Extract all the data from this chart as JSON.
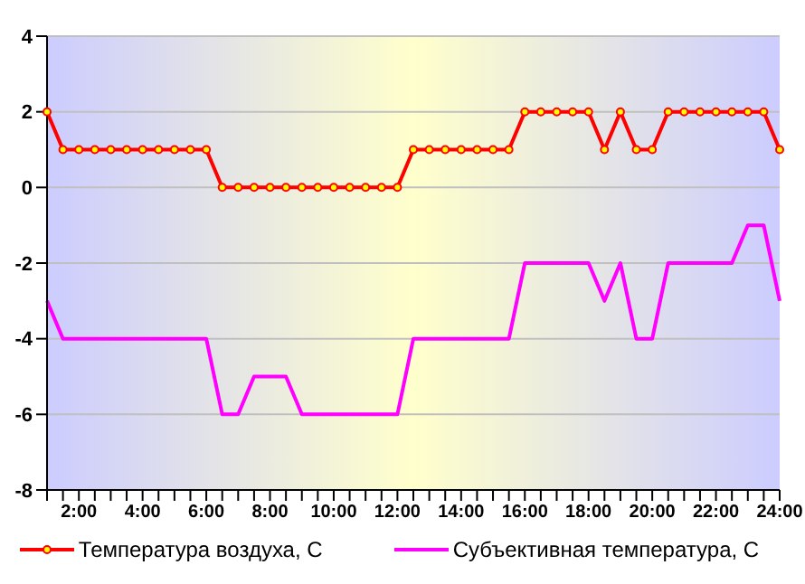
{
  "chart_data": {
    "type": "line",
    "categories": [
      null,
      null,
      "2:00",
      null,
      null,
      null,
      "4:00",
      null,
      null,
      null,
      "6:00",
      null,
      null,
      null,
      "8:00",
      null,
      null,
      null,
      "10:00",
      null,
      null,
      null,
      "12:00",
      null,
      null,
      null,
      "14:00",
      null,
      null,
      null,
      "16:00",
      null,
      null,
      null,
      "18:00",
      null,
      null,
      null,
      "20:00",
      null,
      null,
      null,
      "22:00",
      null,
      null,
      null,
      "24:00"
    ],
    "series": [
      {
        "name": "Температура воздуха, С",
        "color": "#ff0000",
        "marker": "circle",
        "values": [
          2,
          1,
          1,
          1,
          1,
          1,
          1,
          1,
          1,
          1,
          1,
          0,
          0,
          0,
          0,
          0,
          0,
          0,
          0,
          0,
          0,
          0,
          0,
          1,
          1,
          1,
          1,
          1,
          1,
          1,
          2,
          2,
          2,
          2,
          2,
          1,
          2,
          1,
          1,
          2,
          2,
          2,
          2,
          2,
          2,
          2,
          1
        ]
      },
      {
        "name": "Субъективная температура, С",
        "color": "#ff00ff",
        "marker": "none",
        "values": [
          -3,
          -4,
          -4,
          -4,
          -4,
          -4,
          -4,
          -4,
          -4,
          -4,
          -4,
          -6,
          -6,
          -5,
          -5,
          -5,
          -6,
          -6,
          -6,
          -6,
          -6,
          -6,
          -6,
          -4,
          -4,
          -4,
          -4,
          -4,
          -4,
          -4,
          -2,
          -2,
          -2,
          -2,
          -2,
          -3,
          -2,
          -4,
          -4,
          -2,
          -2,
          -2,
          -2,
          -2,
          -1,
          -1,
          -3
        ]
      }
    ],
    "ylim": [
      -8,
      4
    ],
    "yticks": [
      -8,
      -6,
      -4,
      -2,
      0,
      2,
      4
    ],
    "grid": "y",
    "legend": "bottom",
    "line_style": "solid"
  }
}
